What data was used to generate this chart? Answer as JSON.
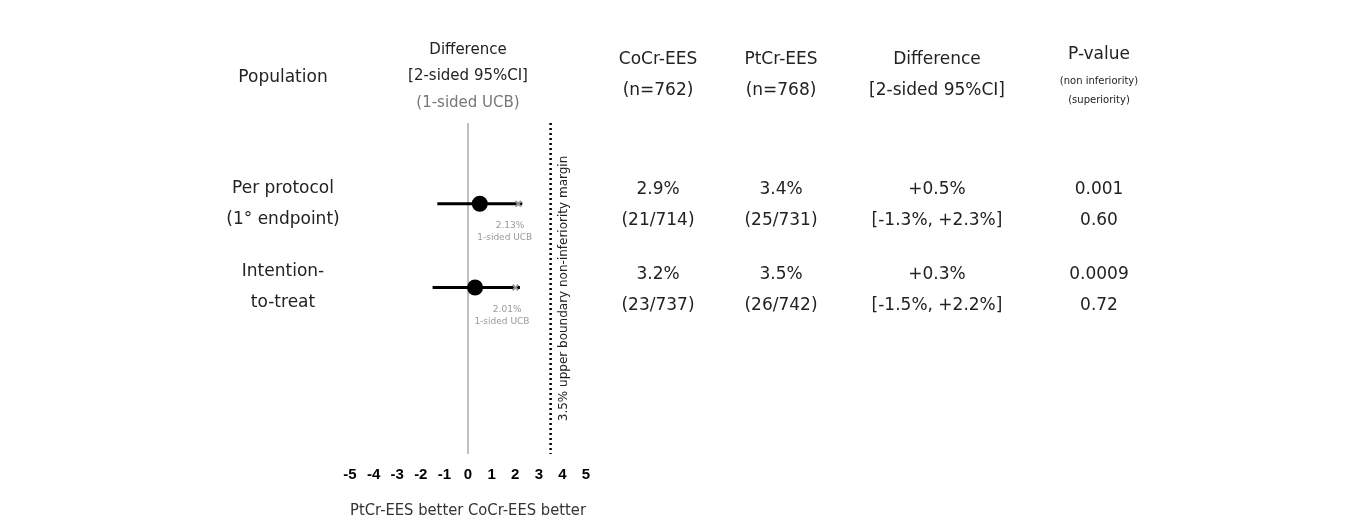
{
  "chart_data": {
    "type": "scatter",
    "orientation": "horizontal",
    "title": "Difference\n[2-sided 95%CI]",
    "subtitle": "(1-sided UCB)",
    "xlabel": "PtCr-EES better CoCr-EES better",
    "categories": [
      "Per protocol\n(1° endpoint)",
      "Intention-\nto-treat"
    ],
    "series": [
      {
        "color": "#000000",
        "values": [
          0.5,
          0.3
        ],
        "errors": [
          [
            -1.3,
            2.3
          ],
          [
            -1.5,
            2.2
          ]
        ]
      },
      {
        "type": "scatter",
        "marker": "cross",
        "color": "#999999",
        "values": [
          2.13,
          2.01
        ],
        "value_labels": [
          "2.13%",
          "2.01%"
        ]
      }
    ],
    "xlim": [
      -5,
      5
    ],
    "xticks": [
      -5,
      -4,
      -3,
      -2,
      -1,
      0,
      1,
      2,
      3,
      4,
      5
    ],
    "grid": false,
    "legend": false,
    "marker": "circle",
    "tick_labels": "x",
    "ref_lines": [
      {
        "axis": "x",
        "value": 0,
        "label": null,
        "color": "#808080",
        "line_style": "solid"
      },
      {
        "axis": "x",
        "value": 3.5,
        "label": "3.5% upper boundary non-inferiority margin",
        "color": "#000000",
        "line_style": "dotted"
      }
    ],
    "annotations": [
      "Population",
      "CoCr-EES\n(n=762)",
      "PtCr-EES\n(n=768)",
      "Difference\n[2-sided 95%CI]",
      "P-value\n(non inferiority)\n(superiority)",
      "2.9%\n(21/714)",
      "3.4%\n(25/731)",
      "+0.5%\n[-1.3%, +2.3%]",
      "0.001\n0.60",
      "3.2%\n(23/737)",
      "3.5%\n(26/742)",
      "+0.3%\n[-1.5%, +2.2%]",
      "0.0009\n0.72",
      "1-sided UCB",
      "1-sided UCB"
    ]
  }
}
